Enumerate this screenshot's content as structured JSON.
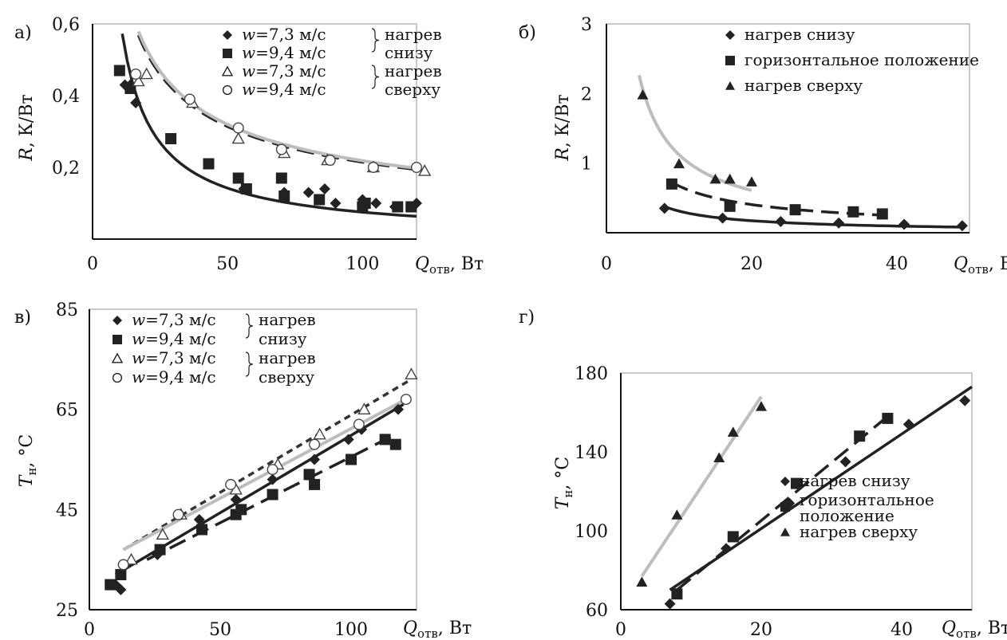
{
  "chart_data": [
    {
      "panel": "а)",
      "type": "scatter",
      "xlim": [
        0,
        120
      ],
      "ylim": [
        0,
        0.6
      ],
      "xticks": [
        {
          "v": 0,
          "t": "0"
        },
        {
          "v": 50,
          "t": "50"
        },
        {
          "v": 100,
          "t": "100"
        }
      ],
      "yticks": [
        {
          "v": 0.2,
          "t": "0,2"
        },
        {
          "v": 0.4,
          "t": "0,4"
        },
        {
          "v": 0.6,
          "t": "0,6"
        }
      ],
      "xlabel": {
        "main": "Q",
        "sub": "отв",
        "unit": ", Вт"
      },
      "ylabel": {
        "main": "R",
        "sub": "",
        "unit": ", К/Вт"
      },
      "series": [
        {
          "name": "w=7,3 м/с",
          "marker": "diamond-filled",
          "color": "#222222",
          "x": [
            12,
            14,
            16,
            56,
            71,
            80,
            84,
            86,
            90,
            100,
            105,
            112,
            118,
            120
          ],
          "y": [
            0.43,
            0.43,
            0.38,
            0.14,
            0.13,
            0.13,
            0.11,
            0.14,
            0.1,
            0.11,
            0.1,
            0.09,
            0.09,
            0.1
          ]
        },
        {
          "name": "w=9,4 м/с",
          "marker": "square-filled",
          "color": "#222222",
          "x": [
            10,
            14,
            29,
            43,
            54,
            57,
            70,
            71,
            84,
            100,
            101,
            113,
            118
          ],
          "y": [
            0.47,
            0.42,
            0.28,
            0.21,
            0.17,
            0.14,
            0.17,
            0.12,
            0.11,
            0.09,
            0.1,
            0.09,
            0.09
          ]
        },
        {
          "name": "w=7,3 м/с",
          "marker": "triangle-open",
          "color": "#444444",
          "x": [
            17,
            20,
            37,
            54,
            71,
            87,
            104,
            123
          ],
          "y": [
            0.44,
            0.46,
            0.38,
            0.28,
            0.24,
            0.22,
            0.2,
            0.19
          ]
        },
        {
          "name": "w=9,4 м/с",
          "marker": "circle-open",
          "color": "#444444",
          "x": [
            16,
            36,
            54,
            70,
            88,
            104,
            120
          ],
          "y": [
            0.46,
            0.39,
            0.31,
            0.25,
            0.22,
            0.2,
            0.2
          ]
        }
      ],
      "curves": [
        {
          "style": "solid-black",
          "a": 5.2,
          "b": -0.92,
          "x0": 11,
          "x1": 120
        },
        {
          "style": "dash-black",
          "a": 2.7,
          "b": -0.55,
          "x0": 17,
          "x1": 122
        },
        {
          "style": "solid-gray",
          "a": 2.75,
          "b": -0.55,
          "x0": 17,
          "x1": 122
        }
      ],
      "legend": [
        {
          "marker": "diamond-filled",
          "label": "w=7,3 м/с",
          "group": "нагрев"
        },
        {
          "marker": "square-filled",
          "label": "w=9,4 м/с",
          "group": "снизу"
        },
        {
          "marker": "triangle-open",
          "label": "w=7,3 м/с",
          "group": "нагрев"
        },
        {
          "marker": "circle-open",
          "label": "w=9,4 м/с",
          "group": "сверху"
        }
      ]
    },
    {
      "panel": "б)",
      "type": "scatter",
      "xlim": [
        0,
        50
      ],
      "ylim": [
        0,
        3
      ],
      "xticks": [
        {
          "v": 0,
          "t": "0"
        },
        {
          "v": 20,
          "t": "20"
        },
        {
          "v": 40,
          "t": "40"
        }
      ],
      "yticks": [
        {
          "v": 1,
          "t": "1"
        },
        {
          "v": 2,
          "t": "2"
        },
        {
          "v": 3,
          "t": "3"
        }
      ],
      "xlabel": {
        "main": "Q",
        "sub": "отв",
        "unit": ", Вт"
      },
      "ylabel": {
        "main": "R",
        "sub": "",
        "unit": ", К/Вт"
      },
      "series": [
        {
          "name": "нагрев снизу",
          "marker": "diamond-filled",
          "color": "#222222",
          "x": [
            8,
            16,
            24,
            32,
            41,
            49
          ],
          "y": [
            0.35,
            0.21,
            0.16,
            0.14,
            0.12,
            0.1
          ]
        },
        {
          "name": "горизонтальное положение",
          "marker": "square-filled",
          "color": "#222222",
          "x": [
            9,
            17,
            26,
            34,
            38
          ],
          "y": [
            0.7,
            0.38,
            0.33,
            0.3,
            0.27
          ]
        },
        {
          "name": "нагрев сверху",
          "marker": "triangle-filled",
          "color": "#222222",
          "x": [
            5,
            10,
            15,
            17,
            20
          ],
          "y": [
            1.98,
            0.99,
            0.77,
            0.77,
            0.73
          ]
        }
      ],
      "curves": [
        {
          "style": "solid-black",
          "a": 2.2,
          "b": -0.85,
          "x0": 8,
          "x1": 49
        },
        {
          "style": "dash-black",
          "a": 3.6,
          "b": -0.73,
          "x0": 9,
          "x1": 38
        },
        {
          "style": "solid-gray",
          "a": 8.5,
          "b": -0.88,
          "x0": 4.5,
          "x1": 20
        }
      ],
      "legend": [
        {
          "marker": "diamond-filled",
          "label": "нагрев снизу",
          "group": ""
        },
        {
          "marker": "square-filled",
          "label": "горизонтальное положение",
          "group": ""
        },
        {
          "marker": "triangle-filled",
          "label": "нагрев сверху",
          "group": ""
        }
      ]
    },
    {
      "panel": "в)",
      "type": "scatter",
      "xlim": [
        0,
        125
      ],
      "ylim": [
        25,
        85
      ],
      "xticks": [
        {
          "v": 0,
          "t": "0"
        },
        {
          "v": 50,
          "t": "50"
        },
        {
          "v": 100,
          "t": "100"
        }
      ],
      "yticks": [
        {
          "v": 25,
          "t": "25"
        },
        {
          "v": 45,
          "t": "45"
        },
        {
          "v": 65,
          "t": "65"
        },
        {
          "v": 85,
          "t": "85"
        }
      ],
      "xlabel": {
        "main": "Q",
        "sub": "отв",
        "unit": ", Вт"
      },
      "ylabel": {
        "main": "T",
        "sub": "н",
        "unit": ", °C"
      },
      "series": [
        {
          "name": "w=7,3 м/с",
          "marker": "diamond-filled",
          "color": "#222222",
          "x": [
            10,
            12,
            26,
            42,
            56,
            70,
            86,
            99,
            104,
            118
          ],
          "y": [
            30,
            29,
            36,
            43,
            47,
            51,
            55,
            59,
            61,
            65
          ]
        },
        {
          "name": "w=9,4 м/с",
          "marker": "square-filled",
          "color": "#222222",
          "x": [
            8,
            12,
            27,
            43,
            56,
            58,
            70,
            84,
            86,
            100,
            113,
            117
          ],
          "y": [
            30,
            32,
            37,
            41,
            44,
            45,
            48,
            52,
            50,
            55,
            59,
            58
          ]
        },
        {
          "name": "w=7,3 м/с",
          "marker": "triangle-open",
          "color": "#444444",
          "x": [
            16,
            28,
            35,
            56,
            72,
            88,
            105,
            123
          ],
          "y": [
            35,
            40,
            44,
            49,
            54,
            60,
            65,
            72
          ]
        },
        {
          "name": "w=9,4 м/с",
          "marker": "circle-open",
          "color": "#444444",
          "x": [
            13,
            34,
            54,
            70,
            86,
            103,
            121
          ],
          "y": [
            34,
            44,
            50,
            53,
            58,
            62,
            67
          ]
        }
      ],
      "curves": [
        {
          "style": "line-solid-black",
          "p": [
            [
              10,
              32
            ],
            [
              120,
              66
            ]
          ]
        },
        {
          "style": "line-dash-black",
          "p": [
            [
              22,
              35
            ],
            [
              117,
              60
            ]
          ]
        },
        {
          "style": "line-dot-black",
          "p": [
            [
              13,
              37
            ],
            [
              123,
              71
            ]
          ]
        },
        {
          "style": "line-solid-gray",
          "p": [
            [
              13,
              37
            ],
            [
              121,
              67
            ]
          ]
        }
      ],
      "legend": [
        {
          "marker": "diamond-filled",
          "label": "w=7,3 м/с",
          "group": "нагрев"
        },
        {
          "marker": "square-filled",
          "label": "w=9,4 м/с",
          "group": "снизу"
        },
        {
          "marker": "triangle-open",
          "label": "w=7,3 м/с",
          "group": "нагрев"
        },
        {
          "marker": "circle-open",
          "label": "w=9,4 м/с",
          "group": "сверху"
        }
      ]
    },
    {
      "panel": "г)",
      "type": "scatter",
      "xlim": [
        0,
        50
      ],
      "ylim": [
        60,
        180
      ],
      "xticks": [
        {
          "v": 0,
          "t": "0"
        },
        {
          "v": 20,
          "t": "20"
        },
        {
          "v": 40,
          "t": "40"
        }
      ],
      "yticks": [
        {
          "v": 60,
          "t": "60"
        },
        {
          "v": 100,
          "t": "100"
        },
        {
          "v": 140,
          "t": "140"
        },
        {
          "v": 180,
          "t": "180"
        }
      ],
      "xlabel": {
        "main": "Q",
        "sub": "отв",
        "unit": ", Вт"
      },
      "ylabel": {
        "main": "T",
        "sub": "н",
        "unit": ", °C"
      },
      "series": [
        {
          "name": "нагрев снизу",
          "marker": "diamond-filled",
          "color": "#222222",
          "x": [
            7,
            15,
            24,
            32,
            41,
            49
          ],
          "y": [
            63,
            91,
            114,
            135,
            154,
            166
          ]
        },
        {
          "name": "горизонтальное положение",
          "marker": "square-filled",
          "color": "#222222",
          "x": [
            8,
            16,
            25,
            34,
            38
          ],
          "y": [
            68,
            97,
            124,
            148,
            157
          ]
        },
        {
          "name": "нагрев сверху",
          "marker": "triangle-filled",
          "color": "#222222",
          "x": [
            3,
            8,
            14,
            16,
            20
          ],
          "y": [
            74,
            108,
            137,
            150,
            163
          ]
        }
      ],
      "curves": [
        {
          "style": "line-solid-black",
          "p": [
            [
              7,
              70
            ],
            [
              50,
              173
            ]
          ]
        },
        {
          "style": "line-dash-black",
          "p": [
            [
              8,
              70
            ],
            [
              38,
              158
            ]
          ]
        },
        {
          "style": "line-solid-gray",
          "p": [
            [
              3,
              77
            ],
            [
              20,
              168
            ]
          ]
        }
      ],
      "legend": [
        {
          "marker": "diamond-filled",
          "label": "нагрев снизу",
          "group": ""
        },
        {
          "marker": "square-filled",
          "label": "горизонтальное положение",
          "group": ""
        },
        {
          "marker": "triangle-filled",
          "label": "нагрев сверху",
          "group": ""
        }
      ]
    }
  ]
}
